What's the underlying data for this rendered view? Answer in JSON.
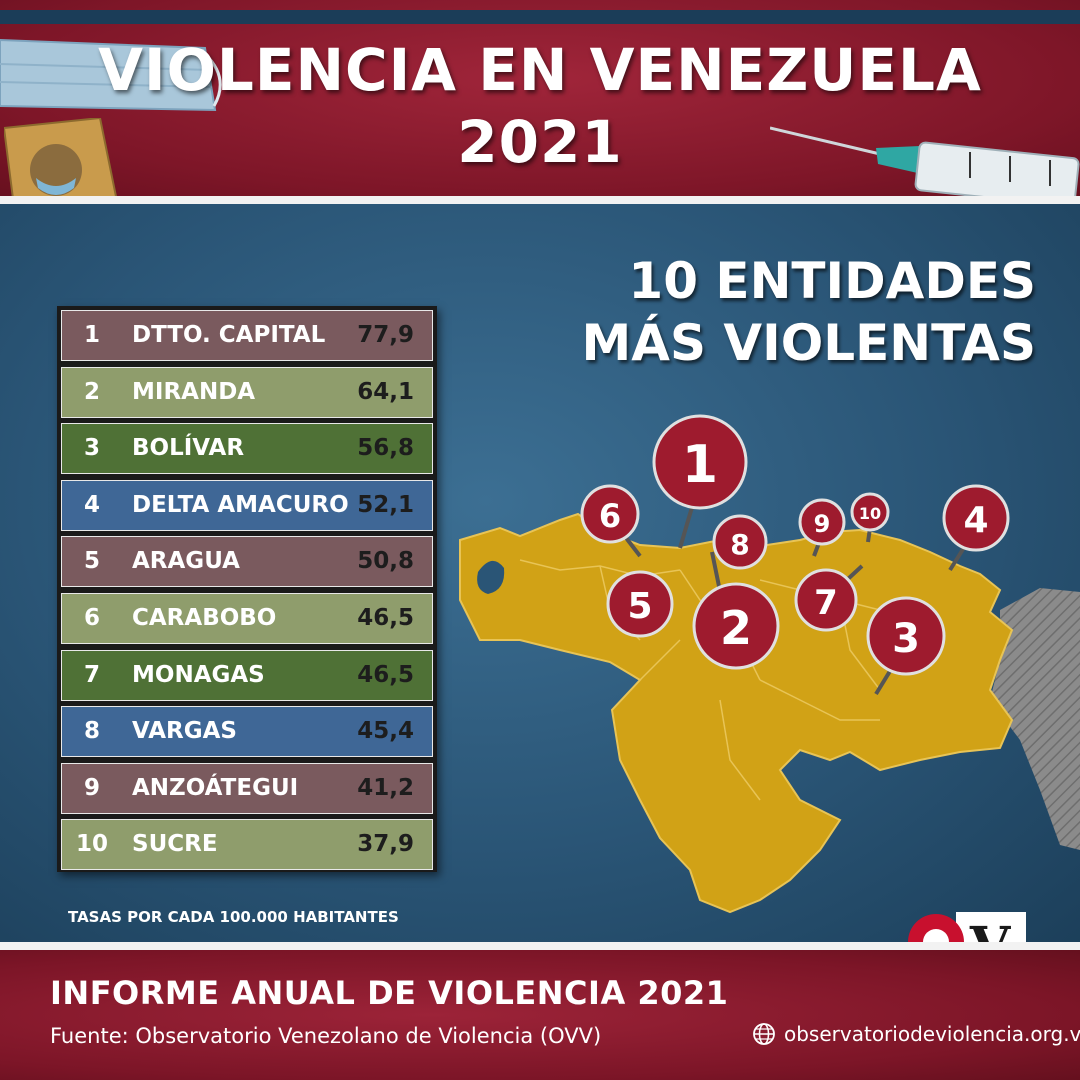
{
  "header": {
    "title_line1": "VIOLENCIA EN VENEZUELA",
    "title_line2": "2021"
  },
  "subtitle": {
    "line1": "10 ENTIDADES",
    "line2": "MÁS VIOLENTAS"
  },
  "ranking": [
    {
      "rank": "1",
      "state": "DTTO. CAPITAL",
      "rate": "77,9",
      "color": "#7a5a5e"
    },
    {
      "rank": "2",
      "state": "MIRANDA",
      "rate": "64,1",
      "color": "#8f9d6c"
    },
    {
      "rank": "3",
      "state": "BOLÍVAR",
      "rate": "56,8",
      "color": "#4f7136"
    },
    {
      "rank": "4",
      "state": "DELTA AMACURO",
      "rate": "52,1",
      "color": "#3f6796"
    },
    {
      "rank": "5",
      "state": "ARAGUA",
      "rate": "50,8",
      "color": "#7a5a5e"
    },
    {
      "rank": "6",
      "state": "CARABOBO",
      "rate": "46,5",
      "color": "#8f9d6c"
    },
    {
      "rank": "7",
      "state": "MONAGAS",
      "rate": "46,5",
      "color": "#4f7136"
    },
    {
      "rank": "8",
      "state": "VARGAS",
      "rate": "45,4",
      "color": "#3f6796"
    },
    {
      "rank": "9",
      "state": "ANZOÁTEGUI",
      "rate": "41,2",
      "color": "#7a5a5e"
    },
    {
      "rank": "10",
      "state": "SUCRE",
      "rate": "37,9",
      "color": "#8f9d6c"
    }
  ],
  "footnote": "TASAS POR CADA 100.000 HABITANTES",
  "map": {
    "pins": [
      "1",
      "2",
      "3",
      "4",
      "5",
      "6",
      "7",
      "8",
      "9",
      "10"
    ],
    "fill_color": "#d1a216",
    "pin_color": "#9e1b2e"
  },
  "logo": {
    "text": "OVV",
    "icon": "ovv-logo"
  },
  "footer": {
    "title": "INFORME ANUAL DE VIOLENCIA 2021",
    "source": "Fuente: Observatorio Venezolano de Violencia (OVV)",
    "website": "observatoriodeviolencia.org.ve",
    "website_icon": "globe-icon"
  }
}
